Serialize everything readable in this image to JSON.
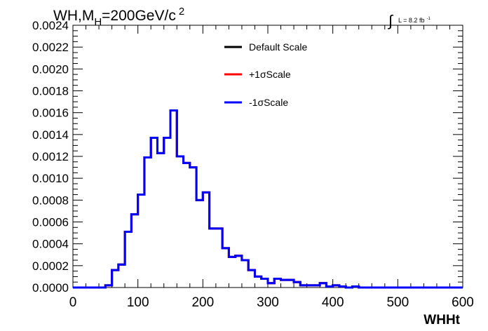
{
  "chart_data": {
    "type": "line",
    "title_main": "WH,M",
    "title_sub": "H",
    "title_rest": "=200GeV/c",
    "title_sup": "2",
    "lumi_integral": "∫",
    "lumi_text": "L = 8.2 fb",
    "lumi_sup": "-1",
    "xlabel": "WHHt",
    "ylabel": "",
    "xlim": [
      0,
      600
    ],
    "ylim": [
      0,
      0.0024
    ],
    "xticks": [
      "0",
      "100",
      "200",
      "300",
      "400",
      "500",
      "600"
    ],
    "yticks": [
      "0.0000",
      "0.0002",
      "0.0004",
      "0.0006",
      "0.0008",
      "0.0010",
      "0.0012",
      "0.0014",
      "0.0016",
      "0.0018",
      "0.0020",
      "0.0022",
      "0.0024"
    ],
    "grid": false,
    "legend_position": "top-center",
    "bin_edges": [
      0,
      10,
      20,
      30,
      40,
      50,
      60,
      70,
      80,
      90,
      100,
      110,
      120,
      130,
      140,
      150,
      160,
      170,
      180,
      190,
      200,
      210,
      220,
      230,
      240,
      250,
      260,
      270,
      280,
      290,
      300,
      310,
      320,
      330,
      340,
      350,
      360,
      370,
      380,
      390,
      400,
      410,
      420,
      430,
      440,
      450,
      460,
      470,
      480,
      490,
      500,
      510,
      520,
      530,
      540,
      550,
      560,
      570,
      580,
      590,
      600
    ],
    "series": [
      {
        "name": "Default Scale",
        "color": "#000000",
        "values": [
          0,
          0,
          0,
          0,
          0,
          2e-05,
          0.00016,
          0.00021,
          0.00051,
          0.00067,
          0.00085,
          0.00119,
          0.00137,
          0.00123,
          0.00137,
          0.00162,
          0.0012,
          0.00114,
          0.0011,
          0.0008,
          0.00087,
          0.00054,
          0.00054,
          0.00036,
          0.00028,
          0.00029,
          0.00025,
          0.00016,
          0.0001,
          8e-05,
          4e-05,
          8e-05,
          7e-05,
          7e-05,
          5e-05,
          2e-05,
          2e-05,
          2e-05,
          4e-05,
          1e-05,
          2e-05,
          1e-05,
          0,
          1e-05,
          0,
          0,
          0,
          0,
          0,
          0,
          0,
          0,
          0,
          0,
          0,
          0,
          0,
          0,
          0,
          0
        ]
      },
      {
        "name": "+1σScale",
        "color": "#ff0000",
        "values": [
          0,
          0,
          0,
          0,
          0,
          2e-05,
          0.00016,
          0.00021,
          0.00051,
          0.00067,
          0.00085,
          0.00119,
          0.00137,
          0.00123,
          0.00137,
          0.00162,
          0.0012,
          0.00114,
          0.0011,
          0.0008,
          0.00087,
          0.00054,
          0.00054,
          0.00036,
          0.00028,
          0.00029,
          0.00025,
          0.00016,
          0.0001,
          8e-05,
          4e-05,
          8e-05,
          7e-05,
          7e-05,
          5e-05,
          2e-05,
          2e-05,
          2e-05,
          4e-05,
          1e-05,
          2e-05,
          1e-05,
          0,
          1e-05,
          0,
          0,
          0,
          0,
          0,
          0,
          0,
          0,
          0,
          0,
          0,
          0,
          0,
          0,
          0,
          0
        ]
      },
      {
        "name": "-1σScale",
        "color": "#0000ff",
        "values": [
          0,
          0,
          0,
          0,
          0,
          2e-05,
          0.00016,
          0.00021,
          0.00051,
          0.00067,
          0.00085,
          0.00119,
          0.00137,
          0.00123,
          0.00137,
          0.00162,
          0.0012,
          0.00114,
          0.0011,
          0.0008,
          0.00087,
          0.00054,
          0.00054,
          0.00036,
          0.00028,
          0.00029,
          0.00025,
          0.00016,
          0.0001,
          8e-05,
          4e-05,
          8e-05,
          7e-05,
          7e-05,
          5e-05,
          2e-05,
          2e-05,
          2e-05,
          4e-05,
          1e-05,
          2e-05,
          1e-05,
          0,
          1e-05,
          0,
          0,
          0,
          0,
          0,
          0,
          0,
          0,
          0,
          0,
          0,
          0,
          0,
          0,
          0,
          0
        ]
      }
    ]
  }
}
